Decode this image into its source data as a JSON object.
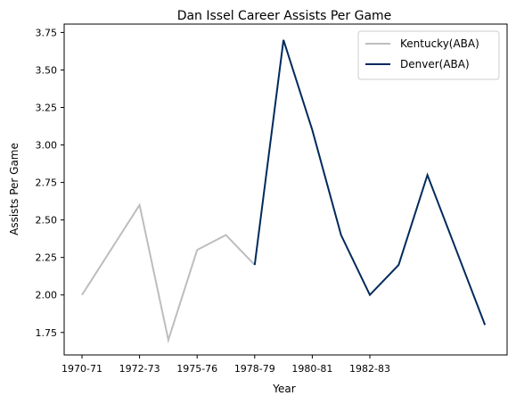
{
  "chart_data": {
    "type": "line",
    "title": "Dan Issel Career Assists Per Game",
    "xlabel": "Year",
    "ylabel": "Assists Per Game",
    "x_tick_labels": [
      "1970-71",
      "1972-73",
      "1975-76",
      "1978-79",
      "1980-81",
      "1982-83"
    ],
    "y_tick_labels": [
      "1.75",
      "2.00",
      "2.25",
      "2.50",
      "2.75",
      "3.00",
      "3.25",
      "3.50",
      "3.75"
    ],
    "ylim": [
      1.6,
      3.8
    ],
    "grid": false,
    "legend_position": "top-right",
    "series": [
      {
        "name": "Kentucky(ABA)",
        "color": "#bdbdbd",
        "values": [
          2.0,
          2.3,
          2.6,
          1.7,
          2.3,
          2.4,
          2.2
        ]
      },
      {
        "name": "Denver(ABA)",
        "color": "#002a5c",
        "values": [
          2.2,
          3.7,
          3.1,
          2.4,
          2.0,
          2.2,
          2.8,
          2.3,
          1.8
        ]
      }
    ]
  }
}
